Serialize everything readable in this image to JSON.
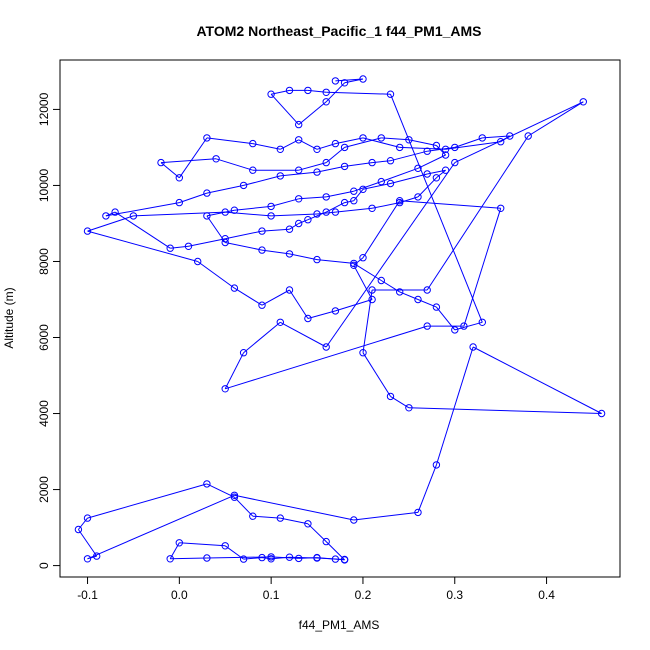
{
  "chart_data": {
    "type": "scatter",
    "title": "ATOM2 Northeast_Pacific_1 f44_PM1_AMS",
    "xlabel": "f44_PM1_AMS",
    "ylabel": "Altitude (m)",
    "xlim": [
      -0.13,
      0.48
    ],
    "ylim": [
      -300,
      13300
    ],
    "xticks": [
      -0.1,
      0.0,
      0.1,
      0.2,
      0.3,
      0.4
    ],
    "xtick_labels": [
      "-0.1",
      "0.0",
      "0.1",
      "0.2",
      "0.3",
      "0.4"
    ],
    "yticks": [
      0,
      2000,
      4000,
      6000,
      8000,
      10000,
      12000
    ],
    "ytick_labels": [
      "0",
      "2000",
      "4000",
      "6000",
      "8000",
      "10000",
      "12000"
    ],
    "series_color": "#0000ff",
    "markers": "open-circle",
    "connected": true,
    "series": [
      {
        "x": [
          0.18,
          0.15,
          0.12,
          0.1,
          0.09,
          0.07,
          0.05,
          0.0,
          -0.01,
          0.03,
          0.1,
          0.13,
          0.15,
          0.17,
          0.18,
          0.16,
          0.14,
          0.11,
          0.08,
          0.06,
          0.03,
          -0.1,
          -0.11,
          -0.09,
          -0.1,
          0.06,
          0.19,
          0.26,
          0.28,
          0.32,
          0.46,
          0.25,
          0.23,
          0.2,
          0.21,
          0.27,
          0.38,
          0.44,
          0.3,
          0.16,
          0.11,
          0.07,
          0.05,
          0.27,
          0.31,
          0.35,
          0.24,
          0.2,
          0.19,
          0.21,
          0.17,
          0.14,
          0.12,
          0.09,
          0.06,
          0.02,
          -0.1,
          -0.05,
          0.05,
          0.1,
          0.15,
          0.17,
          0.21,
          0.24,
          0.26,
          0.28,
          0.29,
          0.27,
          0.23,
          0.2,
          0.19,
          0.18,
          0.16,
          0.14,
          0.13,
          0.12,
          0.09,
          0.05,
          0.01,
          -0.01,
          -0.07,
          -0.08,
          0.0,
          0.03,
          0.07,
          0.11,
          0.15,
          0.18,
          0.21,
          0.23,
          0.27,
          0.3,
          0.33,
          0.36,
          0.35,
          0.29,
          0.24,
          0.2,
          0.17,
          0.15,
          0.13,
          0.11,
          0.08,
          0.03,
          0.0,
          -0.02,
          0.04,
          0.08,
          0.13,
          0.16,
          0.18,
          0.22,
          0.25,
          0.28,
          0.29,
          0.26,
          0.22,
          0.19,
          0.16,
          0.13,
          0.1,
          0.06,
          0.03,
          0.05,
          0.09,
          0.12,
          0.15,
          0.19,
          0.22,
          0.24,
          0.26,
          0.28,
          0.3,
          0.33,
          0.23,
          0.16,
          0.14,
          0.12,
          0.1,
          0.13,
          0.16,
          0.18,
          0.2,
          0.17
        ],
        "y": [
          160,
          200,
          220,
          180,
          210,
          170,
          520,
          600,
          180,
          200,
          230,
          190,
          210,
          170,
          150,
          630,
          1100,
          1250,
          1300,
          1800,
          2150,
          1250,
          950,
          250,
          180,
          1850,
          1200,
          1400,
          2650,
          5750,
          4000,
          4150,
          4450,
          5600,
          7250,
          7250,
          11300,
          12200,
          10600,
          5750,
          6400,
          5600,
          4650,
          6300,
          6300,
          9400,
          9600,
          8100,
          7900,
          7000,
          6700,
          6500,
          7250,
          6850,
          7300,
          8000,
          8800,
          9200,
          9300,
          9200,
          9250,
          9300,
          9400,
          9550,
          9700,
          10200,
          10400,
          10300,
          10050,
          9900,
          9600,
          9550,
          9300,
          9100,
          9000,
          8850,
          8800,
          8600,
          8400,
          8350,
          9300,
          9200,
          9550,
          9800,
          10000,
          10250,
          10350,
          10500,
          10600,
          10650,
          10900,
          11000,
          11250,
          11300,
          11150,
          10950,
          11000,
          11250,
          11100,
          10950,
          11200,
          10950,
          11100,
          11250,
          10200,
          10600,
          10700,
          10400,
          10400,
          10600,
          11000,
          11250,
          11200,
          11050,
          10800,
          10450,
          10100,
          9850,
          9700,
          9650,
          9450,
          9350,
          9200,
          8500,
          8300,
          8200,
          8050,
          7950,
          7500,
          7200,
          7000,
          6800,
          6200,
          6400,
          12400,
          12450,
          12500,
          12500,
          12400,
          11600,
          12200,
          12700,
          12800,
          12750
        ],
        "description_free": true
      }
    ]
  }
}
